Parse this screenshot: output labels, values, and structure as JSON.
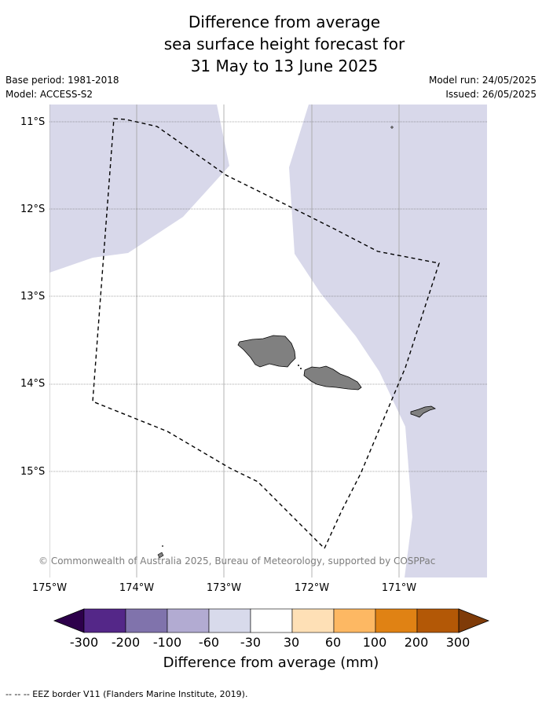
{
  "title": {
    "line1": "Difference from average",
    "line2": "sea surface height forecast for",
    "line3": "31 May to 13 June 2025"
  },
  "meta": {
    "base_period": "Base period: 1981-2018",
    "model": "Model: ACCESS-S2",
    "model_run": "Model run: 24/05/2025",
    "issued": "Issued: 26/05/2025"
  },
  "map": {
    "lat_labels": [
      "11°S",
      "12°S",
      "13°S",
      "14°S",
      "15°S"
    ],
    "lon_labels": [
      "175°W",
      "174°W",
      "173°W",
      "172°W",
      "171°W"
    ],
    "copyright": "© Commonwealth of Australia 2025, Bureau of Meteorology, supported by COSPPac",
    "colors": {
      "anomaly_-30_-60": "#d8d8ea",
      "land": "#808080",
      "eez_border": "#000000",
      "grid": "#a0a0a0"
    }
  },
  "colorbar": {
    "ticks": [
      "-300",
      "-200",
      "-100",
      "-60",
      "-30",
      "30",
      "60",
      "100",
      "200",
      "300"
    ],
    "colors": [
      "#2d004b",
      "#542788",
      "#8073ac",
      "#b2abd2",
      "#d8daeb",
      "#ffffff",
      "#fee0b6",
      "#fdb863",
      "#e08214",
      "#b35806",
      "#7f3b08"
    ],
    "label": "Difference from average (mm)"
  },
  "footnote": "--  --  -- EEZ border V11 (Flanders Marine Institute, 2019)."
}
